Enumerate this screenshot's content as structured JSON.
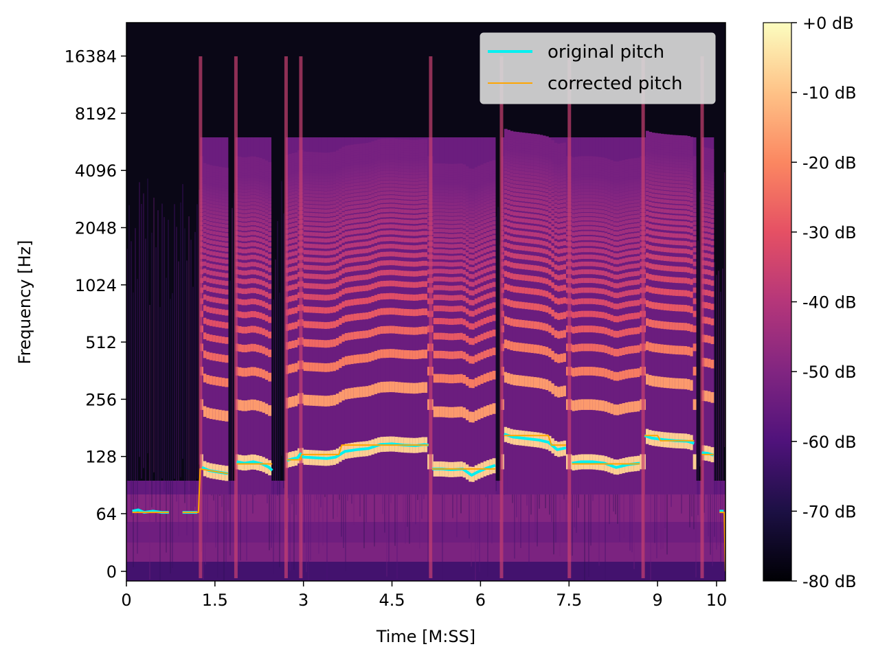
{
  "chart_data": {
    "type": "heatmap",
    "title": "",
    "xlabel": "Time [M:SS]",
    "ylabel": "Frequency [Hz]",
    "xlim": [
      0,
      10.15
    ],
    "x_ticks": [
      {
        "value": 0,
        "label": "0"
      },
      {
        "value": 1.5,
        "label": "1.5"
      },
      {
        "value": 3,
        "label": "3"
      },
      {
        "value": 4.5,
        "label": "4.5"
      },
      {
        "value": 6,
        "label": "6"
      },
      {
        "value": 7.5,
        "label": "7.5"
      },
      {
        "value": 9,
        "label": "9"
      },
      {
        "value": 10,
        "label": "10"
      }
    ],
    "y_scale": "log2",
    "y_ticks": [
      {
        "value": 0,
        "label": "0"
      },
      {
        "value": 64,
        "label": "64"
      },
      {
        "value": 128,
        "label": "128"
      },
      {
        "value": 256,
        "label": "256"
      },
      {
        "value": 512,
        "label": "512"
      },
      {
        "value": 1024,
        "label": "1024"
      },
      {
        "value": 2048,
        "label": "2048"
      },
      {
        "value": 4096,
        "label": "4096"
      },
      {
        "value": 8192,
        "label": "8192"
      },
      {
        "value": 16384,
        "label": "16384"
      }
    ],
    "colormap": "magma",
    "colorbar": {
      "range_db": [
        -80,
        0
      ],
      "ticks": [
        {
          "value": 0,
          "label": "+0 dB"
        },
        {
          "value": -10,
          "label": "-10 dB"
        },
        {
          "value": -20,
          "label": "-20 dB"
        },
        {
          "value": -30,
          "label": "-30 dB"
        },
        {
          "value": -40,
          "label": "-40 dB"
        },
        {
          "value": -50,
          "label": "-50 dB"
        },
        {
          "value": -60,
          "label": "-60 dB"
        },
        {
          "value": -70,
          "label": "-70 dB"
        },
        {
          "value": -80,
          "label": "-80 dB"
        }
      ]
    },
    "legend": {
      "placement": "top-right",
      "entries": [
        {
          "name": "original pitch",
          "color": "#00f0f0"
        },
        {
          "name": "corrected pitch",
          "color": "#ffa500"
        }
      ]
    },
    "voiced_segments": [
      {
        "start": 1.25,
        "end": 1.72
      },
      {
        "start": 1.85,
        "end": 2.45
      },
      {
        "start": 2.7,
        "end": 2.95
      },
      {
        "start": 2.95,
        "end": 5.15
      },
      {
        "start": 5.15,
        "end": 6.25
      },
      {
        "start": 6.35,
        "end": 7.5
      },
      {
        "start": 7.5,
        "end": 8.75
      },
      {
        "start": 8.75,
        "end": 9.65
      },
      {
        "start": 9.75,
        "end": 9.95
      }
    ],
    "series": [
      {
        "name": "original pitch",
        "color": "#00f0f0",
        "segments": [
          [
            [
              0.1,
              66
            ],
            [
              0.2,
              67
            ],
            [
              0.3,
              65
            ],
            [
              0.45,
              66
            ],
            [
              0.6,
              65
            ],
            [
              0.72,
              65
            ]
          ],
          [
            [
              0.95,
              65
            ],
            [
              1.2,
              65
            ]
          ],
          [
            [
              1.28,
              112
            ],
            [
              1.4,
              108
            ],
            [
              1.55,
              106
            ],
            [
              1.72,
              104
            ]
          ],
          [
            [
              1.87,
              120
            ],
            [
              2.0,
              118
            ],
            [
              2.15,
              120
            ],
            [
              2.3,
              117
            ],
            [
              2.42,
              112
            ],
            [
              2.47,
              108
            ]
          ],
          [
            [
              2.72,
              122
            ],
            [
              2.8,
              124
            ],
            [
              2.9,
              126
            ],
            [
              2.95,
              132
            ],
            [
              3.0,
              127
            ],
            [
              3.2,
              126
            ],
            [
              3.4,
              125
            ],
            [
              3.55,
              127
            ],
            [
              3.7,
              136
            ],
            [
              3.9,
              139
            ],
            [
              4.1,
              141
            ],
            [
              4.3,
              148
            ],
            [
              4.5,
              149
            ],
            [
              4.7,
              147
            ],
            [
              4.9,
              146
            ],
            [
              5.05,
              148
            ],
            [
              5.12,
              147
            ]
          ],
          [
            [
              5.18,
              110
            ],
            [
              5.35,
              110
            ],
            [
              5.5,
              109
            ],
            [
              5.7,
              110
            ],
            [
              5.85,
              102
            ],
            [
              5.95,
              106
            ],
            [
              6.1,
              111
            ],
            [
              6.25,
              115
            ]
          ],
          [
            [
              6.4,
              168
            ],
            [
              6.55,
              162
            ],
            [
              6.7,
              160
            ],
            [
              6.85,
              158
            ],
            [
              7.0,
              156
            ],
            [
              7.15,
              152
            ],
            [
              7.3,
              139
            ],
            [
              7.45,
              142
            ]
          ],
          [
            [
              7.55,
              118
            ],
            [
              7.7,
              120
            ],
            [
              7.9,
              120
            ],
            [
              8.1,
              118
            ],
            [
              8.3,
              112
            ],
            [
              8.5,
              116
            ],
            [
              8.7,
              118
            ]
          ],
          [
            [
              8.78,
              165
            ],
            [
              8.9,
              160
            ],
            [
              9.1,
              157
            ],
            [
              9.3,
              155
            ],
            [
              9.5,
              154
            ],
            [
              9.62,
              150
            ]
          ],
          [
            [
              9.75,
              134
            ],
            [
              9.85,
              133
            ],
            [
              9.95,
              130
            ]
          ],
          [
            [
              10.05,
              66
            ],
            [
              10.12,
              66
            ]
          ]
        ]
      },
      {
        "name": "corrected pitch",
        "color": "#ffa500",
        "segments": [
          [
            [
              0.1,
              65
            ],
            [
              0.72,
              65
            ]
          ],
          [
            [
              0.95,
              65
            ],
            [
              1.22,
              65
            ],
            [
              1.25,
              110
            ],
            [
              1.72,
              104
            ]
          ],
          [
            [
              1.87,
              117
            ],
            [
              2.47,
              117
            ]
          ],
          [
            [
              2.72,
              123
            ],
            [
              2.95,
              123
            ],
            [
              2.97,
              131
            ],
            [
              3.6,
              131
            ],
            [
              3.65,
              147
            ],
            [
              5.12,
              147
            ]
          ],
          [
            [
              5.18,
              110
            ],
            [
              6.25,
              110
            ]
          ],
          [
            [
              6.4,
              165
            ],
            [
              7.15,
              165
            ],
            [
              7.2,
              147
            ],
            [
              7.45,
              147
            ]
          ],
          [
            [
              7.55,
              117
            ],
            [
              8.7,
              117
            ]
          ],
          [
            [
              8.78,
              165
            ],
            [
              9.0,
              165
            ],
            [
              9.05,
              155
            ],
            [
              9.62,
              155
            ]
          ],
          [
            [
              9.75,
              131
            ],
            [
              9.95,
              131
            ]
          ],
          [
            [
              10.05,
              65
            ],
            [
              10.13,
              65
            ],
            [
              10.15,
              0
            ]
          ]
        ]
      }
    ]
  }
}
